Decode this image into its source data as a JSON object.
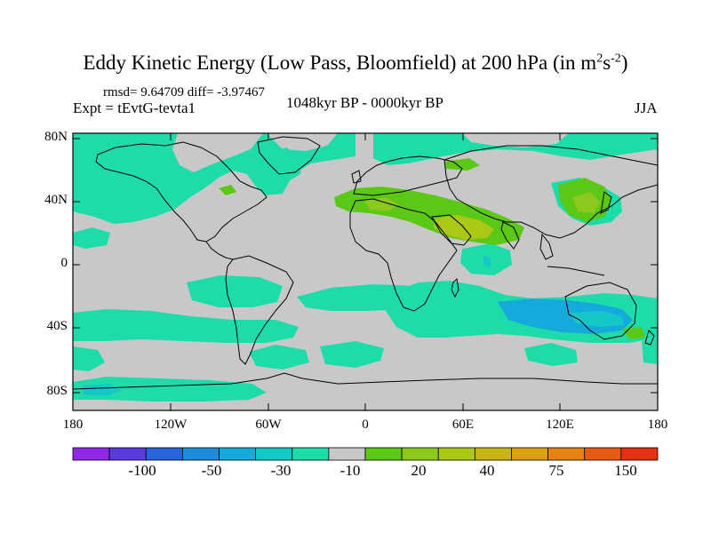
{
  "title": {
    "main": "Eddy Kinetic Energy (Low Pass, Bloomfield) at 200 hPa (in m",
    "sup1": "2",
    "mid": "s",
    "sup2": "-2",
    "end": ")"
  },
  "stats": "rmsd= 9.64709 diff= -3.97467",
  "experiment": "Expt = tEvtG-tevta1",
  "period": "1048kyr BP - 0000kyr BP",
  "season": "JJA",
  "lat_ticks": [
    "80N",
    "40N",
    "0",
    "40S",
    "80S"
  ],
  "lon_ticks": [
    "180",
    "120W",
    "60W",
    "0",
    "60E",
    "120E",
    "180"
  ],
  "colorbar": {
    "labels": [
      "-100",
      "-50",
      "-30",
      "-10",
      "20",
      "40",
      "75",
      "150"
    ],
    "colors": [
      "#8c28e6",
      "#5a3cdc",
      "#2864dc",
      "#1e8cdc",
      "#14aadc",
      "#14c8c8",
      "#1edcaa",
      "#c8c8c8",
      "#5ac814",
      "#8cc81e",
      "#aac814",
      "#c8b414",
      "#dca014",
      "#e68214",
      "#e65a14",
      "#e63214"
    ]
  },
  "colors": {
    "land_sea_background": "#c8c8c8",
    "cyan": "#1edcaa",
    "teal": "#14c8c8",
    "blue": "#14aadc",
    "green": "#5ac814",
    "light_green": "#8cc81e",
    "yellow_green": "#aac814"
  }
}
